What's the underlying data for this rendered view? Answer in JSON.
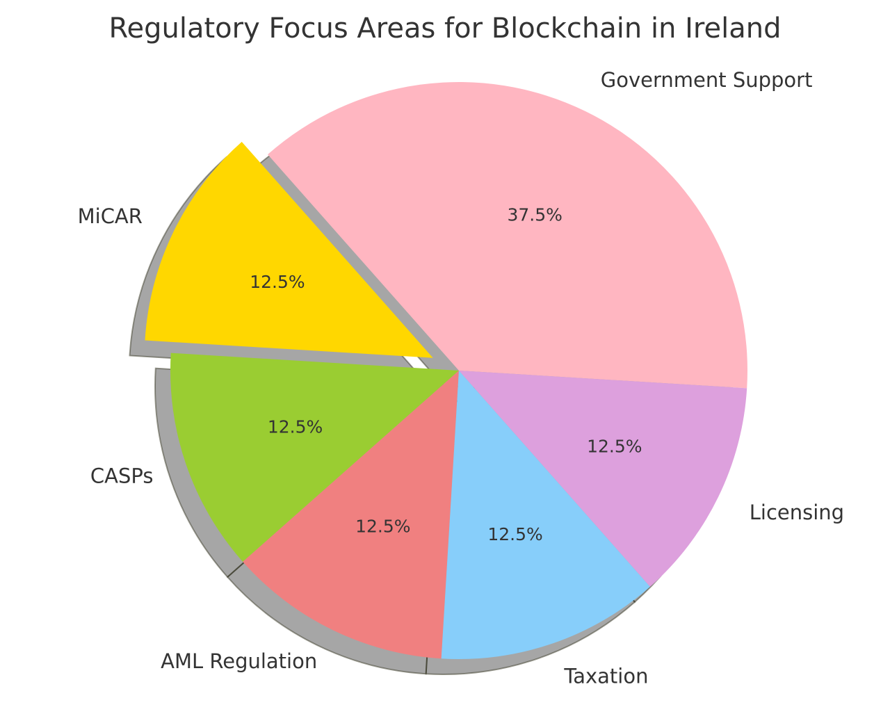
{
  "chart_data": {
    "type": "pie",
    "title": "Regulatory Focus Areas for Blockchain in Ireland",
    "start_category": "Government Support",
    "direction": "counterclockwise",
    "shadow": true,
    "slices": [
      {
        "label": "Government Support",
        "value": 37.5,
        "pct_label": "37.5%",
        "color": "#FFB6C1",
        "explode": false
      },
      {
        "label": "MiCAR",
        "value": 12.5,
        "pct_label": "12.5%",
        "color": "#FFD700",
        "explode": true
      },
      {
        "label": "CASPs",
        "value": 12.5,
        "pct_label": "12.5%",
        "color": "#9ACD32",
        "explode": false
      },
      {
        "label": "AML Regulation",
        "value": 12.5,
        "pct_label": "12.5%",
        "color": "#F08080",
        "explode": false
      },
      {
        "label": "Taxation",
        "value": 12.5,
        "pct_label": "12.5%",
        "color": "#87CEFA",
        "explode": false
      },
      {
        "label": "Licensing",
        "value": 12.5,
        "pct_label": "12.5%",
        "color": "#DDA0DD",
        "explode": false
      }
    ]
  }
}
